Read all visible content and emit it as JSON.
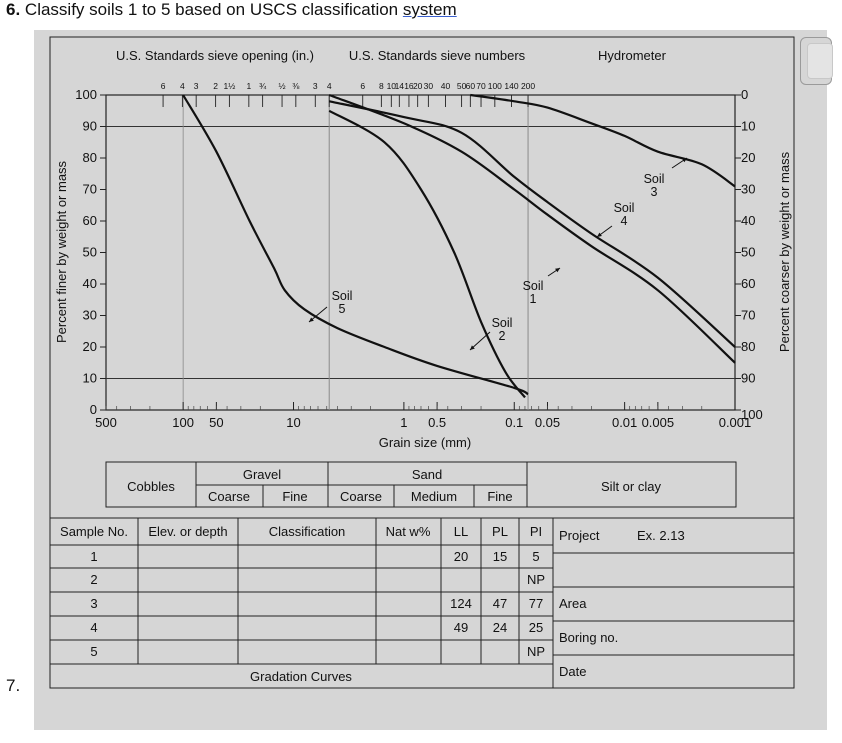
{
  "question": {
    "number": "6.",
    "text": "Classify soils 1 to 5 based on USCS classification ",
    "link": "system"
  },
  "next_number": "7.",
  "colors": {
    "panel": "#d6d6d6",
    "ink": "#111111",
    "grid": "#8a8a8a"
  },
  "chart_data": {
    "type": "line",
    "title_left": "U.S. Standards sieve opening (in.)",
    "title_mid": "U.S. Standards sieve numbers",
    "title_right": "Hydrometer",
    "xlabel": "Grain size (mm)",
    "ylabel_left": "Percent finer by weight or mass",
    "ylabel_right": "Percent coarser by weight or mass",
    "x_scale": "log, reversed",
    "xlim": [
      500,
      0.001
    ],
    "ylim": [
      0,
      100
    ],
    "x_ticks": [
      {
        "v": 500,
        "t": "500"
      },
      {
        "v": 100,
        "t": "100"
      },
      {
        "v": 50,
        "t": "50"
      },
      {
        "v": 10,
        "t": "10"
      },
      {
        "v": 1,
        "t": "1"
      },
      {
        "v": 0.5,
        "t": "0.5"
      },
      {
        "v": 0.1,
        "t": "0.1"
      },
      {
        "v": 0.05,
        "t": "0.05"
      },
      {
        "v": 0.01,
        "t": "0.01"
      },
      {
        "v": 0.005,
        "t": "0.005"
      },
      {
        "v": 0.001,
        "t": "0.001"
      }
    ],
    "y_ticks_left": [
      "0",
      "10",
      "20",
      "30",
      "40",
      "50",
      "60",
      "70",
      "80",
      "90",
      "100"
    ],
    "y_ticks_right": [
      "100",
      "90",
      "80",
      "70",
      "60",
      "50",
      "40",
      "30",
      "20",
      "10",
      "0"
    ],
    "sieve_openings_in": [
      {
        "v": 152,
        "t": "6"
      },
      {
        "v": 101.6,
        "t": "4"
      },
      {
        "v": 76.2,
        "t": "3"
      },
      {
        "v": 50.8,
        "t": "2"
      },
      {
        "v": 38.1,
        "t": "1½"
      },
      {
        "v": 25.4,
        "t": "1"
      },
      {
        "v": 19.05,
        "t": "¾"
      },
      {
        "v": 12.7,
        "t": "½"
      },
      {
        "v": 9.53,
        "t": "⅜"
      },
      {
        "v": 6.35,
        "t": "3"
      }
    ],
    "sieve_numbers": [
      {
        "v": 4.75,
        "t": "4"
      },
      {
        "v": 2.36,
        "t": "6"
      },
      {
        "v": 1.6,
        "t": "8"
      },
      {
        "v": 1.3,
        "t": "10"
      },
      {
        "v": 1.1,
        "t": "14"
      },
      {
        "v": 0.9,
        "t": "16"
      },
      {
        "v": 0.75,
        "t": "20"
      },
      {
        "v": 0.6,
        "t": "30"
      },
      {
        "v": 0.42,
        "t": "40"
      },
      {
        "v": 0.3,
        "t": "50"
      },
      {
        "v": 0.25,
        "t": "60"
      },
      {
        "v": 0.2,
        "t": "70"
      },
      {
        "v": 0.15,
        "t": "100"
      },
      {
        "v": 0.106,
        "t": "140"
      },
      {
        "v": 0.075,
        "t": "200"
      }
    ],
    "series": [
      {
        "label": "Soil 1",
        "points": [
          [
            4.75,
            100
          ],
          [
            1.0,
            91
          ],
          [
            0.3,
            82
          ],
          [
            0.1,
            70
          ],
          [
            0.05,
            62
          ],
          [
            0.02,
            52
          ],
          [
            0.005,
            38
          ],
          [
            0.001,
            15
          ]
        ]
      },
      {
        "label": "Soil 2",
        "points": [
          [
            4.75,
            95
          ],
          [
            1.5,
            85
          ],
          [
            0.7,
            70
          ],
          [
            0.35,
            50
          ],
          [
            0.2,
            28
          ],
          [
            0.12,
            12
          ],
          [
            0.08,
            4
          ]
        ]
      },
      {
        "label": "Soil 3",
        "points": [
          [
            0.25,
            100
          ],
          [
            0.1,
            98
          ],
          [
            0.05,
            96
          ],
          [
            0.02,
            91
          ],
          [
            0.01,
            87
          ],
          [
            0.005,
            82
          ],
          [
            0.002,
            78
          ],
          [
            0.001,
            71
          ]
        ]
      },
      {
        "label": "Soil 4",
        "points": [
          [
            4.75,
            98
          ],
          [
            1.0,
            93
          ],
          [
            0.3,
            88
          ],
          [
            0.1,
            74
          ],
          [
            0.05,
            66
          ],
          [
            0.02,
            56
          ],
          [
            0.005,
            42
          ],
          [
            0.001,
            20
          ]
        ]
      },
      {
        "label": "Soil 5",
        "points": [
          [
            100,
            100
          ],
          [
            50,
            82
          ],
          [
            25,
            60
          ],
          [
            15,
            45
          ],
          [
            12,
            38
          ],
          [
            8,
            32
          ],
          [
            4,
            26
          ],
          [
            1.5,
            20
          ],
          [
            0.5,
            14
          ],
          [
            0.1,
            7
          ],
          [
            0.075,
            5
          ]
        ]
      }
    ],
    "labels": [
      {
        "lines": [
          "Soil",
          "5"
        ]
      },
      {
        "lines": [
          "Soil",
          "2"
        ]
      },
      {
        "lines": [
          "Soil",
          "1"
        ]
      },
      {
        "lines": [
          "Soil",
          "4"
        ]
      },
      {
        "lines": [
          "Soil",
          "3"
        ]
      }
    ]
  },
  "classification_bar": {
    "cobbles": "Cobbles",
    "gravel": "Gravel",
    "sand": "Sand",
    "silt_clay": "Silt or clay",
    "coarse1": "Coarse",
    "fine1": "Fine",
    "coarse2": "Coarse",
    "medium": "Medium",
    "fine2": "Fine"
  },
  "table": {
    "headers": [
      "Sample No.",
      "Elev. or depth",
      "Classification",
      "Nat w%",
      "LL",
      "PL",
      "PI"
    ],
    "rows": [
      [
        "1",
        "",
        "",
        "",
        "20",
        "15",
        "5"
      ],
      [
        "2",
        "",
        "",
        "",
        "",
        "",
        "NP"
      ],
      [
        "3",
        "",
        "",
        "",
        "124",
        "47",
        "77"
      ],
      [
        "4",
        "",
        "",
        "",
        "49",
        "24",
        "25"
      ],
      [
        "5",
        "",
        "",
        "",
        "",
        "",
        "NP"
      ]
    ],
    "footer": "Gradation Curves",
    "project_label": "Project",
    "project_value": "Ex. 2.13",
    "area_label": "Area",
    "boring_label": "Boring no.",
    "date_label": "Date"
  }
}
